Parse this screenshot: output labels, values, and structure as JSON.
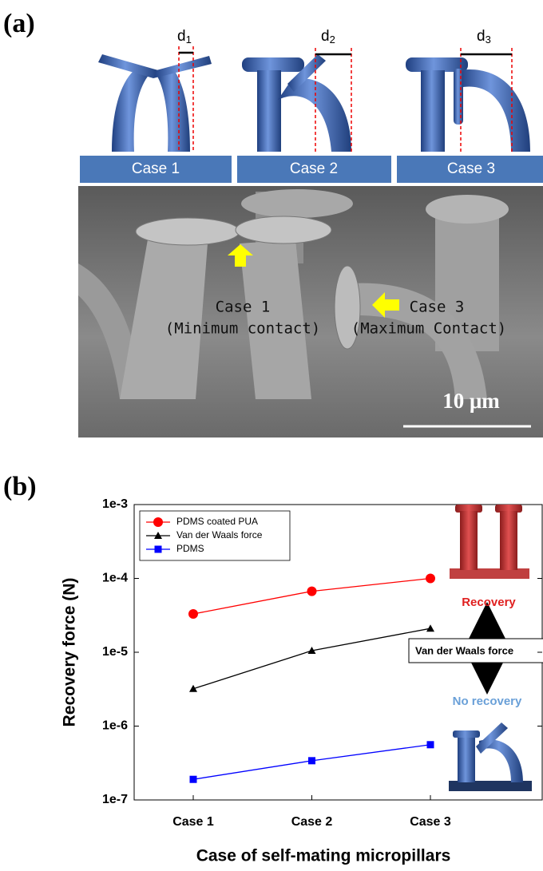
{
  "panel_a": {
    "label": "(a)",
    "distances": [
      {
        "symbol": "d",
        "subscript": "1"
      },
      {
        "symbol": "d",
        "subscript": "2"
      },
      {
        "symbol": "d",
        "subscript": "3"
      }
    ],
    "cases": [
      "Case 1",
      "Case 2",
      "Case 3"
    ],
    "sem": {
      "annotation_1": {
        "name": "Case 1",
        "note": "(Minimum  contact)"
      },
      "annotation_3": {
        "name": "Case 3",
        "note": "(Maximum Contact)"
      },
      "scale_bar": "10 μm"
    }
  },
  "panel_b": {
    "label": "(b)",
    "inset": {
      "top": "Recovery",
      "middle": "Van der Waals force",
      "bottom": "No recovery"
    }
  },
  "chart_data": {
    "type": "line",
    "yscale": "log",
    "xlabel": "Case of self-mating micropillars",
    "ylabel": "Recovery force (N)",
    "categories": [
      "Case 1",
      "Case 2",
      "Case 3"
    ],
    "series": [
      {
        "name": "PDMS coated PUA",
        "color": "#ff0000",
        "marker": "circle",
        "values": [
          3.3e-05,
          6.7e-05,
          0.0001
        ]
      },
      {
        "name": "Van der Waals force",
        "color": "#000000",
        "marker": "triangle",
        "values": [
          3.2e-06,
          1.05e-05,
          2.1e-05
        ]
      },
      {
        "name": "PDMS",
        "color": "#0000ff",
        "marker": "square",
        "values": [
          1.9e-07,
          3.4e-07,
          5.6e-07
        ]
      }
    ],
    "ylim": [
      1e-07,
      0.001
    ],
    "yticks": [
      {
        "value": 1e-07,
        "label": "1e-7"
      },
      {
        "value": 1e-06,
        "label": "1e-6"
      },
      {
        "value": 1e-05,
        "label": "1e-5"
      },
      {
        "value": 0.0001,
        "label": "1e-4"
      },
      {
        "value": 0.001,
        "label": "1e-3"
      }
    ],
    "legend": "upper left"
  }
}
